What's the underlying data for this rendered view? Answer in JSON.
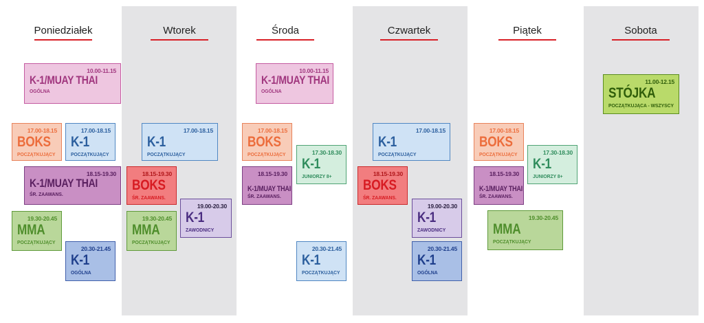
{
  "days": [
    "Poniedziałek",
    "Wtorek",
    "Środa",
    "Czwartek",
    "Piątek",
    "Sobota"
  ],
  "classes": [
    {
      "id": "mon1",
      "time": "10.00-11.15",
      "name": "K-1/MUAY THAI",
      "sub": "OGÓLNA"
    },
    {
      "id": "mon2",
      "time": "17.00-18.15",
      "name": "BOKS",
      "sub": "POCZĄTKUJĄCY"
    },
    {
      "id": "mon3",
      "time": "17.00-18.15",
      "name": "K-1",
      "sub": "POCZĄTKUJĄCY"
    },
    {
      "id": "mon4",
      "time": "18.15-19.30",
      "name": "K-1/MUAY THAI",
      "sub": "ŚR. ZAAWANS."
    },
    {
      "id": "mon5",
      "time": "19.30-20.45",
      "name": "MMA",
      "sub": "POCZĄTKUJĄCY"
    },
    {
      "id": "mon6",
      "time": "20.30-21.45",
      "name": "K-1",
      "sub": "OGÓLNA"
    },
    {
      "id": "tue1",
      "time": "17.00-18.15",
      "name": "K-1",
      "sub": "POCZĄTKUJĄCY"
    },
    {
      "id": "tue2",
      "time": "18.15-19.30",
      "name": "BOKS",
      "sub": "ŚR. ZAAWANS."
    },
    {
      "id": "tue3",
      "time": "19.00-20.30",
      "name": "K-1",
      "sub": "ZAWODNICY"
    },
    {
      "id": "tue4",
      "time": "19.30-20.45",
      "name": "MMA",
      "sub": "POCZĄTKUJĄCY"
    },
    {
      "id": "wed1",
      "time": "10.00-11.15",
      "name": "K-1/MUAY THAI",
      "sub": "OGÓLNA"
    },
    {
      "id": "wed2",
      "time": "17.00-18.15",
      "name": "BOKS",
      "sub": "POCZĄTKUJĄCY"
    },
    {
      "id": "wed3",
      "time": "17.30-18.30",
      "name": "K-1",
      "sub": "JUNIORZY 8+"
    },
    {
      "id": "wed4",
      "time": "18.15-19.30",
      "name": "K-1/MUAY THAI",
      "sub": "ŚR. ZAAWANS."
    },
    {
      "id": "wed5",
      "time": "20.30-21.45",
      "name": "K-1",
      "sub": "POCZĄTKUJĄCY"
    },
    {
      "id": "thu1",
      "time": "17.00-18.15",
      "name": "K-1",
      "sub": "POCZĄTKUJĄCY"
    },
    {
      "id": "thu2",
      "time": "18.15-19.30",
      "name": "BOKS",
      "sub": "ŚR. ZAAWANS."
    },
    {
      "id": "thu3",
      "time": "19.00-20.30",
      "name": "K-1",
      "sub": "ZAWODNICY"
    },
    {
      "id": "thu4",
      "time": "20.30-21.45",
      "name": "K-1",
      "sub": "OGÓLNA"
    },
    {
      "id": "fri1",
      "time": "17.00-18.15",
      "name": "BOKS",
      "sub": "POCZĄTKUJĄCY"
    },
    {
      "id": "fri2",
      "time": "17.30-18.30",
      "name": "K-1",
      "sub": "JUNIORZY 8+"
    },
    {
      "id": "fri3",
      "time": "18.15-19.30",
      "name": "K-1/MUAY THAI",
      "sub": "ŚR. ZAAWANS."
    },
    {
      "id": "fri4",
      "time": "19.30-20.45",
      "name": "MMA",
      "sub": "POCZĄTKUJĄCY"
    },
    {
      "id": "sat1",
      "time": "11.00-12.15",
      "name": "STÓJKA",
      "sub": "POCZĄTKUJĄCA - WSZYSCY"
    }
  ]
}
